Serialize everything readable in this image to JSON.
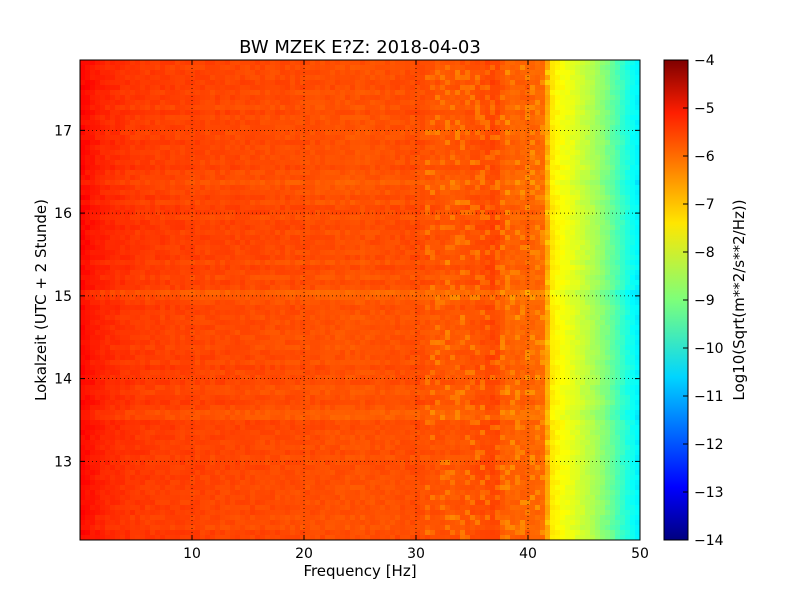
{
  "chart_data": {
    "type": "heatmap",
    "title": "BW MZEK E?Z: 2018-04-03",
    "xlabel": "Frequency [Hz]",
    "ylabel": "Lokalzeit (UTC + 2 Stunde)",
    "xlim": [
      0,
      50
    ],
    "ylim": [
      17.85,
      12.05
    ],
    "xticks": [
      10,
      20,
      30,
      40,
      50
    ],
    "yticks": [
      13,
      14,
      15,
      16,
      17
    ],
    "grid": true,
    "colorbar": {
      "label": "Log10(Sqrt(m**2/s**2/Hz))",
      "colormap": "jet",
      "range": [
        -14,
        -4
      ],
      "ticks": [
        -4,
        -5,
        -6,
        -7,
        -8,
        -9,
        -10,
        -11,
        -12,
        -13,
        -14
      ]
    },
    "frequency_profile_hz": [
      0,
      2,
      5,
      10,
      20,
      25,
      30,
      33,
      36,
      37,
      38,
      40,
      41.5,
      42,
      43,
      44,
      45,
      46,
      47,
      48,
      49,
      50
    ],
    "frequency_profile_log10": [
      -5.3,
      -5.6,
      -5.8,
      -5.9,
      -6.0,
      -6.05,
      -6.0,
      -6.1,
      -6.0,
      -5.9,
      -6.2,
      -6.2,
      -6.3,
      -7.5,
      -7.8,
      -8.0,
      -8.3,
      -8.6,
      -9.0,
      -9.5,
      -10.0,
      -10.4
    ],
    "time_bands": [
      {
        "time": 13.55,
        "delta": -0.15
      },
      {
        "time": 15.0,
        "delta": -0.2
      },
      {
        "time": 16.35,
        "delta": -0.1
      }
    ]
  }
}
